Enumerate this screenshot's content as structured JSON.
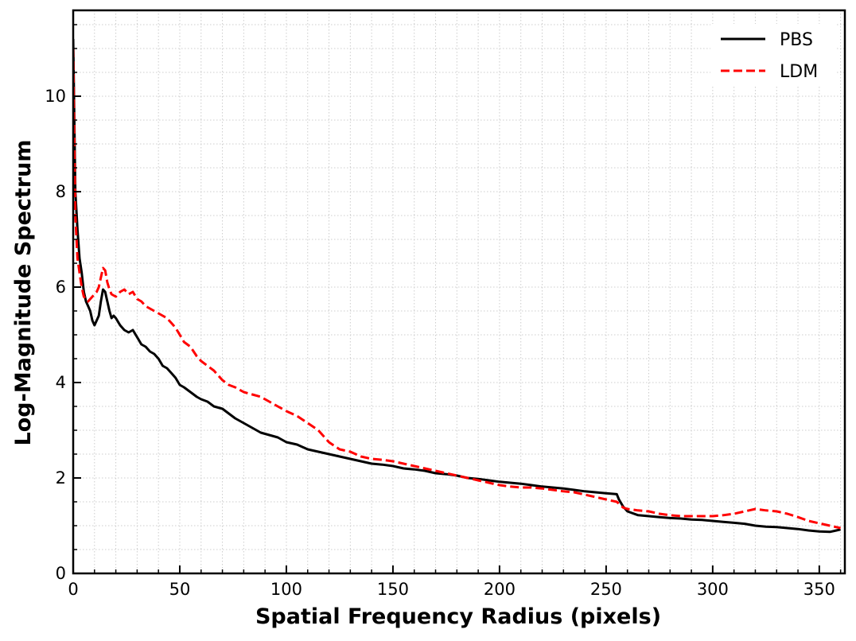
{
  "chart_data": {
    "type": "line",
    "title": "",
    "xlabel": "Spatial Frequency Radius (pixels)",
    "ylabel": "Log-Magnitude Spectrum",
    "xlim": [
      0,
      362
    ],
    "ylim": [
      0,
      11.8
    ],
    "xticks": [
      0,
      50,
      100,
      150,
      200,
      250,
      300,
      350
    ],
    "yticks": [
      0,
      2,
      4,
      6,
      8,
      10
    ],
    "grid": true,
    "legend": "top-right",
    "series": [
      {
        "name": "PBS",
        "color": "#000000",
        "dash": "solid",
        "points": [
          [
            0,
            11.2
          ],
          [
            1,
            8.0
          ],
          [
            2,
            7.2
          ],
          [
            3,
            6.6
          ],
          [
            4,
            6.3
          ],
          [
            5,
            5.9
          ],
          [
            6,
            5.7
          ],
          [
            7,
            5.6
          ],
          [
            8,
            5.5
          ],
          [
            9,
            5.3
          ],
          [
            10,
            5.2
          ],
          [
            11,
            5.3
          ],
          [
            12,
            5.4
          ],
          [
            13,
            5.7
          ],
          [
            14,
            5.95
          ],
          [
            15,
            5.9
          ],
          [
            16,
            5.7
          ],
          [
            17,
            5.5
          ],
          [
            18,
            5.35
          ],
          [
            19,
            5.4
          ],
          [
            20,
            5.35
          ],
          [
            22,
            5.2
          ],
          [
            24,
            5.1
          ],
          [
            26,
            5.05
          ],
          [
            28,
            5.1
          ],
          [
            30,
            4.95
          ],
          [
            32,
            4.8
          ],
          [
            34,
            4.75
          ],
          [
            36,
            4.65
          ],
          [
            38,
            4.6
          ],
          [
            40,
            4.5
          ],
          [
            42,
            4.35
          ],
          [
            44,
            4.3
          ],
          [
            46,
            4.2
          ],
          [
            48,
            4.1
          ],
          [
            50,
            3.95
          ],
          [
            52,
            3.9
          ],
          [
            55,
            3.8
          ],
          [
            58,
            3.7
          ],
          [
            60,
            3.65
          ],
          [
            63,
            3.6
          ],
          [
            66,
            3.5
          ],
          [
            70,
            3.45
          ],
          [
            73,
            3.35
          ],
          [
            76,
            3.25
          ],
          [
            80,
            3.15
          ],
          [
            84,
            3.05
          ],
          [
            88,
            2.95
          ],
          [
            92,
            2.9
          ],
          [
            96,
            2.85
          ],
          [
            100,
            2.75
          ],
          [
            105,
            2.7
          ],
          [
            110,
            2.6
          ],
          [
            115,
            2.55
          ],
          [
            120,
            2.5
          ],
          [
            125,
            2.45
          ],
          [
            130,
            2.4
          ],
          [
            135,
            2.35
          ],
          [
            140,
            2.3
          ],
          [
            145,
            2.28
          ],
          [
            150,
            2.25
          ],
          [
            155,
            2.2
          ],
          [
            160,
            2.18
          ],
          [
            165,
            2.15
          ],
          [
            170,
            2.1
          ],
          [
            175,
            2.08
          ],
          [
            180,
            2.05
          ],
          [
            185,
            2.0
          ],
          [
            190,
            1.98
          ],
          [
            195,
            1.95
          ],
          [
            200,
            1.92
          ],
          [
            205,
            1.9
          ],
          [
            210,
            1.88
          ],
          [
            215,
            1.85
          ],
          [
            220,
            1.82
          ],
          [
            225,
            1.8
          ],
          [
            230,
            1.78
          ],
          [
            235,
            1.75
          ],
          [
            240,
            1.72
          ],
          [
            245,
            1.7
          ],
          [
            250,
            1.68
          ],
          [
            255,
            1.66
          ],
          [
            256,
            1.55
          ],
          [
            258,
            1.4
          ],
          [
            260,
            1.3
          ],
          [
            265,
            1.22
          ],
          [
            270,
            1.2
          ],
          [
            275,
            1.18
          ],
          [
            280,
            1.16
          ],
          [
            285,
            1.15
          ],
          [
            290,
            1.13
          ],
          [
            295,
            1.12
          ],
          [
            300,
            1.1
          ],
          [
            305,
            1.08
          ],
          [
            310,
            1.06
          ],
          [
            315,
            1.04
          ],
          [
            320,
            1.0
          ],
          [
            325,
            0.98
          ],
          [
            330,
            0.97
          ],
          [
            335,
            0.95
          ],
          [
            340,
            0.93
          ],
          [
            345,
            0.9
          ],
          [
            350,
            0.88
          ],
          [
            355,
            0.87
          ],
          [
            358,
            0.9
          ],
          [
            360,
            0.92
          ]
        ]
      },
      {
        "name": "LDM",
        "color": "#ff0000",
        "dash": "dashed",
        "points": [
          [
            0,
            11.0
          ],
          [
            1,
            7.5
          ],
          [
            2,
            6.6
          ],
          [
            3,
            6.3
          ],
          [
            4,
            6.0
          ],
          [
            5,
            5.8
          ],
          [
            6,
            5.75
          ],
          [
            7,
            5.7
          ],
          [
            8,
            5.75
          ],
          [
            9,
            5.8
          ],
          [
            10,
            5.85
          ],
          [
            11,
            5.9
          ],
          [
            12,
            6.0
          ],
          [
            13,
            6.2
          ],
          [
            14,
            6.4
          ],
          [
            15,
            6.35
          ],
          [
            16,
            6.1
          ],
          [
            17,
            5.95
          ],
          [
            18,
            5.85
          ],
          [
            20,
            5.8
          ],
          [
            22,
            5.9
          ],
          [
            24,
            5.95
          ],
          [
            26,
            5.85
          ],
          [
            28,
            5.9
          ],
          [
            30,
            5.75
          ],
          [
            32,
            5.7
          ],
          [
            34,
            5.6
          ],
          [
            36,
            5.55
          ],
          [
            38,
            5.5
          ],
          [
            40,
            5.45
          ],
          [
            42,
            5.4
          ],
          [
            44,
            5.35
          ],
          [
            46,
            5.25
          ],
          [
            48,
            5.15
          ],
          [
            50,
            5.0
          ],
          [
            52,
            4.85
          ],
          [
            55,
            4.75
          ],
          [
            58,
            4.55
          ],
          [
            60,
            4.45
          ],
          [
            63,
            4.35
          ],
          [
            66,
            4.25
          ],
          [
            70,
            4.05
          ],
          [
            73,
            3.95
          ],
          [
            76,
            3.9
          ],
          [
            80,
            3.8
          ],
          [
            84,
            3.75
          ],
          [
            88,
            3.7
          ],
          [
            92,
            3.6
          ],
          [
            96,
            3.5
          ],
          [
            100,
            3.4
          ],
          [
            105,
            3.3
          ],
          [
            110,
            3.15
          ],
          [
            115,
            3.0
          ],
          [
            120,
            2.75
          ],
          [
            125,
            2.6
          ],
          [
            130,
            2.55
          ],
          [
            135,
            2.45
          ],
          [
            140,
            2.4
          ],
          [
            145,
            2.38
          ],
          [
            150,
            2.35
          ],
          [
            155,
            2.3
          ],
          [
            160,
            2.25
          ],
          [
            165,
            2.2
          ],
          [
            170,
            2.15
          ],
          [
            175,
            2.1
          ],
          [
            180,
            2.05
          ],
          [
            185,
            2.0
          ],
          [
            190,
            1.95
          ],
          [
            195,
            1.9
          ],
          [
            200,
            1.85
          ],
          [
            205,
            1.82
          ],
          [
            210,
            1.8
          ],
          [
            215,
            1.8
          ],
          [
            220,
            1.78
          ],
          [
            225,
            1.75
          ],
          [
            230,
            1.72
          ],
          [
            235,
            1.7
          ],
          [
            240,
            1.65
          ],
          [
            245,
            1.6
          ],
          [
            250,
            1.55
          ],
          [
            255,
            1.5
          ],
          [
            258,
            1.38
          ],
          [
            260,
            1.35
          ],
          [
            265,
            1.32
          ],
          [
            270,
            1.3
          ],
          [
            275,
            1.25
          ],
          [
            280,
            1.22
          ],
          [
            285,
            1.2
          ],
          [
            290,
            1.2
          ],
          [
            295,
            1.2
          ],
          [
            300,
            1.2
          ],
          [
            305,
            1.22
          ],
          [
            310,
            1.25
          ],
          [
            315,
            1.3
          ],
          [
            320,
            1.35
          ],
          [
            325,
            1.32
          ],
          [
            330,
            1.3
          ],
          [
            335,
            1.25
          ],
          [
            340,
            1.18
          ],
          [
            345,
            1.1
          ],
          [
            350,
            1.05
          ],
          [
            355,
            1.0
          ],
          [
            358,
            0.97
          ],
          [
            360,
            0.95
          ]
        ]
      }
    ]
  }
}
